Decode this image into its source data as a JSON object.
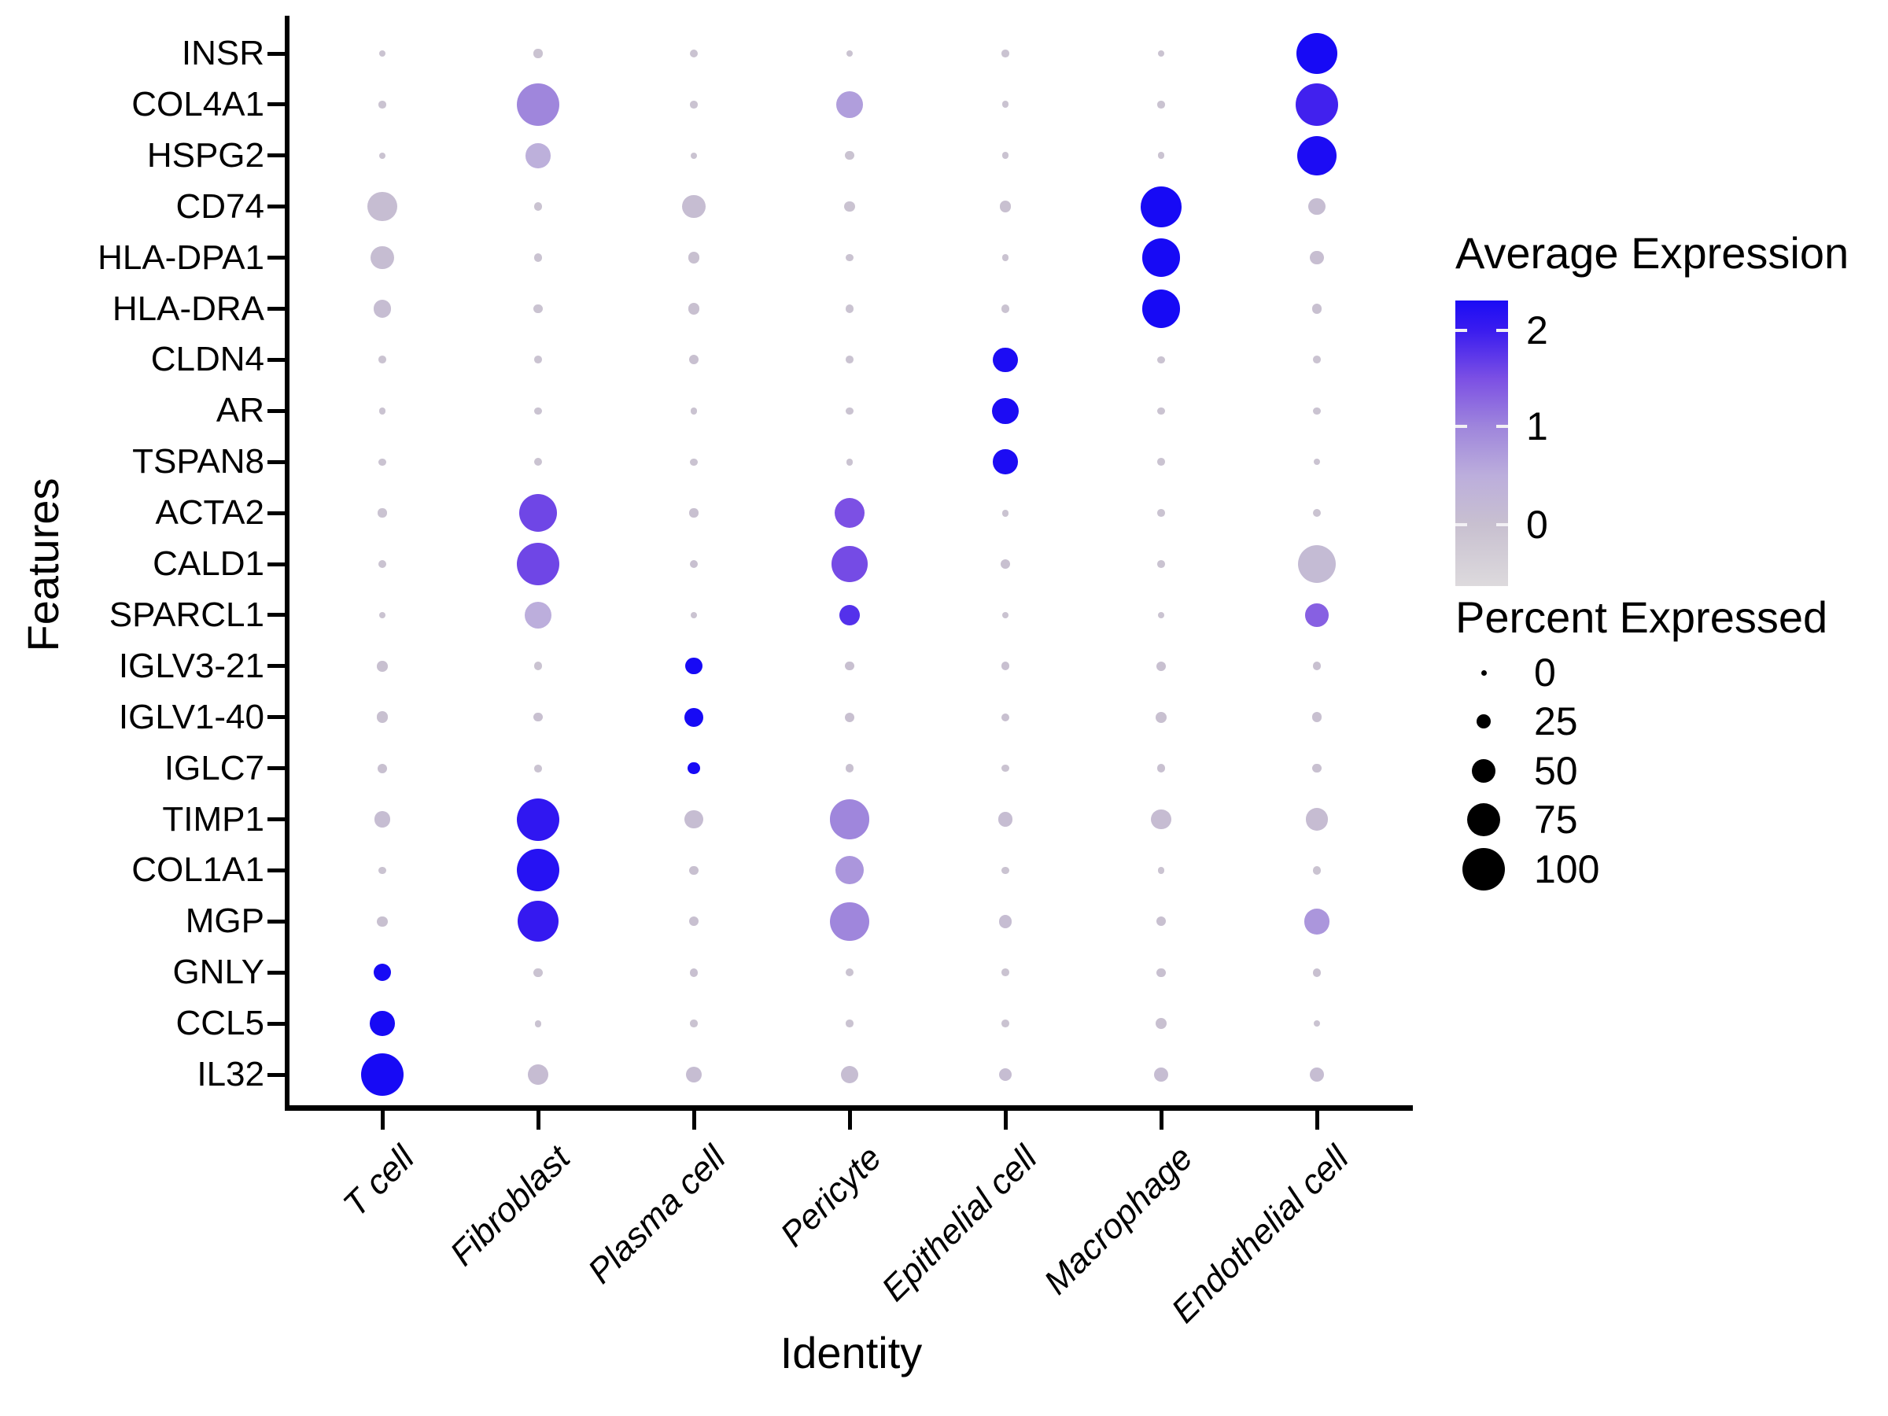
{
  "figure": {
    "x_axis_title": "Identity",
    "y_axis_title": "Features"
  },
  "legend": {
    "avg_expression_title": "Average Expression",
    "avg_expression_ticks": [
      "2",
      "1",
      "0"
    ],
    "percent_expressed_title": "Percent Expressed",
    "percent_expressed_ticks": [
      "0",
      "25",
      "50",
      "75",
      "100"
    ]
  },
  "chart_data": {
    "type": "scatter",
    "subtype": "dot-plot (bubble matrix): dot size = percent expressed, dot color = average expression",
    "x_categories": [
      "T cell",
      "Fibroblast",
      "Plasma cell",
      "Pericyte",
      "Epithelial cell",
      "Macrophage",
      "Endothelial cell"
    ],
    "y_categories": [
      "INSR",
      "COL4A1",
      "HSPG2",
      "CD74",
      "HLA-DPA1",
      "HLA-DRA",
      "CLDN4",
      "AR",
      "TSPAN8",
      "ACTA2",
      "CALD1",
      "SPARCL1",
      "IGLV3-21",
      "IGLV1-40",
      "IGLC7",
      "TIMP1",
      "COL1A1",
      "MGP",
      "GNLY",
      "CCL5",
      "IL32"
    ],
    "xlabel": "Identity",
    "ylabel": "Features",
    "size_legend_percents": [
      0,
      25,
      50,
      75,
      100
    ],
    "color_scale_ticks": [
      2,
      1,
      0
    ],
    "color_scale_stops": [
      [
        -0.5,
        "#DCD9DC"
      ],
      [
        0,
        "#C8C0D0"
      ],
      [
        0.5,
        "#BCAEDC"
      ],
      [
        1,
        "#9F86DC"
      ],
      [
        1.5,
        "#7C50E4"
      ],
      [
        2,
        "#3A1CEF"
      ],
      [
        2.5,
        "#0802F8"
      ]
    ],
    "dots_note": "rows = genes (y_categories), cols = cell types (x_categories); each entry = [percent_expressed, avg_expression]",
    "dots": [
      [
        [
          4,
          -0.05
        ],
        [
          9,
          -0.05
        ],
        [
          7,
          -0.05
        ],
        [
          4,
          -0.05
        ],
        [
          5,
          -0.05
        ],
        [
          3,
          -0.05
        ],
        [
          95,
          2.35
        ]
      ],
      [
        [
          5,
          -0.05
        ],
        [
          100,
          1.0
        ],
        [
          5,
          -0.05
        ],
        [
          58,
          0.7
        ],
        [
          4,
          -0.05
        ],
        [
          5,
          -0.05
        ],
        [
          100,
          1.95
        ]
      ],
      [
        [
          3,
          -0.05
        ],
        [
          52,
          0.45
        ],
        [
          3,
          -0.05
        ],
        [
          9,
          -0.05
        ],
        [
          4,
          -0.05
        ],
        [
          4,
          -0.05
        ],
        [
          92,
          2.3
        ]
      ],
      [
        [
          65,
          0.08
        ],
        [
          8,
          -0.05
        ],
        [
          48,
          0.08
        ],
        [
          13,
          -0.05
        ],
        [
          17,
          0.0
        ],
        [
          95,
          2.35
        ],
        [
          30,
          0.08
        ]
      ],
      [
        [
          48,
          0.08
        ],
        [
          8,
          -0.05
        ],
        [
          16,
          0.0
        ],
        [
          5,
          -0.05
        ],
        [
          4,
          -0.05
        ],
        [
          88,
          2.35
        ],
        [
          22,
          0.05
        ]
      ],
      [
        [
          32,
          0.08
        ],
        [
          9,
          -0.05
        ],
        [
          16,
          0.0
        ],
        [
          7,
          -0.05
        ],
        [
          7,
          -0.05
        ],
        [
          88,
          2.35
        ],
        [
          12,
          0.0
        ]
      ],
      [
        [
          6,
          -0.05
        ],
        [
          6,
          -0.05
        ],
        [
          11,
          0.0
        ],
        [
          6,
          -0.05
        ],
        [
          52,
          2.3
        ],
        [
          5,
          -0.05
        ],
        [
          6,
          -0.05
        ]
      ],
      [
        [
          4,
          -0.05
        ],
        [
          5,
          -0.05
        ],
        [
          3,
          -0.05
        ],
        [
          5,
          -0.05
        ],
        [
          56,
          2.3
        ],
        [
          5,
          -0.05
        ],
        [
          5,
          -0.05
        ]
      ],
      [
        [
          5,
          -0.05
        ],
        [
          7,
          -0.05
        ],
        [
          5,
          -0.05
        ],
        [
          4,
          -0.05
        ],
        [
          52,
          2.3
        ],
        [
          6,
          -0.05
        ],
        [
          3,
          -0.05
        ]
      ],
      [
        [
          9,
          -0.05
        ],
        [
          88,
          1.6
        ],
        [
          9,
          0.0
        ],
        [
          66,
          1.5
        ],
        [
          4,
          -0.05
        ],
        [
          6,
          -0.05
        ],
        [
          7,
          -0.05
        ]
      ],
      [
        [
          7,
          -0.05
        ],
        [
          100,
          1.6
        ],
        [
          8,
          0.0
        ],
        [
          82,
          1.55
        ],
        [
          11,
          0.0
        ],
        [
          6,
          -0.05
        ],
        [
          88,
          0.15
        ]
      ],
      [
        [
          3,
          -0.05
        ],
        [
          58,
          0.5
        ],
        [
          3,
          -0.05
        ],
        [
          40,
          1.8
        ],
        [
          3,
          -0.05
        ],
        [
          2,
          -0.05
        ],
        [
          48,
          1.35
        ]
      ],
      [
        [
          14,
          0.0
        ],
        [
          8,
          -0.05
        ],
        [
          30,
          2.35
        ],
        [
          9,
          0.0
        ],
        [
          8,
          0.0
        ],
        [
          11,
          0.0
        ],
        [
          8,
          0.0
        ]
      ],
      [
        [
          17,
          0.0
        ],
        [
          9,
          0.0
        ],
        [
          36,
          2.35
        ],
        [
          11,
          0.0
        ],
        [
          7,
          0.0
        ],
        [
          15,
          0.0
        ],
        [
          12,
          0.0
        ]
      ],
      [
        [
          11,
          0.0
        ],
        [
          6,
          -0.05
        ],
        [
          18,
          2.35
        ],
        [
          7,
          0.0
        ],
        [
          5,
          -0.05
        ],
        [
          7,
          0.0
        ],
        [
          9,
          0.0
        ]
      ],
      [
        [
          28,
          0.08
        ],
        [
          100,
          2.1
        ],
        [
          36,
          0.08
        ],
        [
          92,
          1.0
        ],
        [
          24,
          0.08
        ],
        [
          40,
          0.1
        ],
        [
          45,
          0.1
        ]
      ],
      [
        [
          5,
          -0.05
        ],
        [
          100,
          2.2
        ],
        [
          9,
          0.0
        ],
        [
          62,
          0.8
        ],
        [
          5,
          -0.05
        ],
        [
          4,
          -0.05
        ],
        [
          7,
          -0.05
        ]
      ],
      [
        [
          13,
          0.0
        ],
        [
          95,
          2.05
        ],
        [
          11,
          0.0
        ],
        [
          90,
          1.0
        ],
        [
          21,
          0.08
        ],
        [
          11,
          0.0
        ],
        [
          55,
          0.8
        ]
      ],
      [
        [
          32,
          2.35
        ],
        [
          9,
          -0.05
        ],
        [
          8,
          0.0
        ],
        [
          7,
          -0.05
        ],
        [
          6,
          -0.05
        ],
        [
          9,
          0.0
        ],
        [
          8,
          0.0
        ]
      ],
      [
        [
          52,
          2.35
        ],
        [
          4,
          -0.05
        ],
        [
          5,
          -0.05
        ],
        [
          5,
          -0.05
        ],
        [
          6,
          -0.05
        ],
        [
          15,
          0.0
        ],
        [
          2,
          -0.05
        ]
      ],
      [
        [
          100,
          2.35
        ],
        [
          40,
          0.1
        ],
        [
          28,
          0.08
        ],
        [
          32,
          0.08
        ],
        [
          20,
          0.08
        ],
        [
          25,
          0.08
        ],
        [
          25,
          0.08
        ]
      ]
    ]
  }
}
